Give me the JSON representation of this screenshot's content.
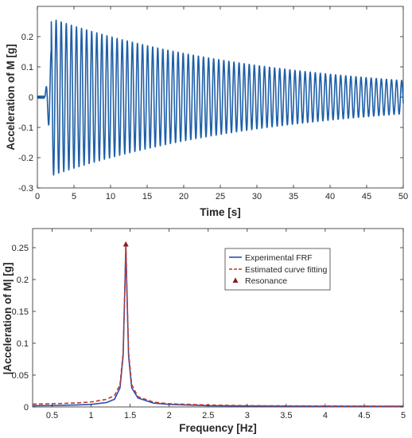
{
  "chart_data": [
    {
      "type": "line",
      "xlabel": "Time [s]",
      "ylabel": "Acceleration of M [g]",
      "xlim": [
        0,
        50
      ],
      "ylim": [
        -0.3,
        0.3
      ],
      "xticks": [
        0,
        5,
        10,
        15,
        20,
        25,
        30,
        35,
        40,
        45,
        50
      ],
      "yticks": [
        -0.3,
        -0.2,
        -0.1,
        0,
        0.1,
        0.2
      ],
      "ytick_labels": [
        "-0.3",
        "-0.2",
        "-0.1",
        "0",
        "0.1",
        "0.2"
      ],
      "grid": false,
      "series_color": "#1f5fa8",
      "signal": {
        "quiet_until_s": 1.0,
        "onset_s": 1.9,
        "peak_amplitude_g": 0.26,
        "final_amplitude_g": 0.055,
        "end_time_s": 50,
        "frequency_hz": 1.44
      }
    },
    {
      "type": "line",
      "xlabel": "Frequency [Hz]",
      "ylabel": "|Acceleration of M| [g]",
      "xlim": [
        0.25,
        5
      ],
      "ylim": [
        0,
        0.28
      ],
      "xticks": [
        0.5,
        1,
        1.5,
        2,
        2.5,
        3,
        3.5,
        4,
        4.5,
        5
      ],
      "xtick_labels": [
        "0.5",
        "1",
        "1.5",
        "2",
        "2.5",
        "3",
        "3.5",
        "4",
        "4.5",
        "5"
      ],
      "yticks": [
        0,
        0.05,
        0.1,
        0.15,
        0.2,
        0.25
      ],
      "ytick_labels": [
        "0",
        "0.05",
        "0.1",
        "0.15",
        "0.2",
        "0.25"
      ],
      "grid": false,
      "legend": {
        "placement": "top-right"
      },
      "series": [
        {
          "name": "Experimental FRF",
          "style": "solid",
          "color": "#2a4fb5",
          "points": [
            [
              0.25,
              0.002
            ],
            [
              0.5,
              0.0022
            ],
            [
              0.8,
              0.003
            ],
            [
              1.0,
              0.004
            ],
            [
              1.2,
              0.007
            ],
            [
              1.3,
              0.012
            ],
            [
              1.37,
              0.03
            ],
            [
              1.41,
              0.08
            ],
            [
              1.435,
              0.2
            ],
            [
              1.445,
              0.255
            ],
            [
              1.455,
              0.2
            ],
            [
              1.48,
              0.08
            ],
            [
              1.52,
              0.03
            ],
            [
              1.6,
              0.014
            ],
            [
              1.8,
              0.006
            ],
            [
              2.0,
              0.004
            ],
            [
              2.5,
              0.002
            ],
            [
              3.0,
              0.0015
            ],
            [
              3.5,
              0.0012
            ],
            [
              4.0,
              0.001
            ],
            [
              4.5,
              0.001
            ],
            [
              5.0,
              0.001
            ]
          ]
        },
        {
          "name": "Estimated curve fitting",
          "style": "dashed",
          "color": "#c0392b",
          "points": [
            [
              0.25,
              0.0045
            ],
            [
              0.5,
              0.005
            ],
            [
              0.8,
              0.0062
            ],
            [
              1.0,
              0.0078
            ],
            [
              1.2,
              0.012
            ],
            [
              1.3,
              0.018
            ],
            [
              1.37,
              0.035
            ],
            [
              1.41,
              0.085
            ],
            [
              1.435,
              0.2
            ],
            [
              1.445,
              0.255
            ],
            [
              1.455,
              0.2
            ],
            [
              1.48,
              0.085
            ],
            [
              1.52,
              0.035
            ],
            [
              1.6,
              0.016
            ],
            [
              1.8,
              0.0075
            ],
            [
              2.0,
              0.005
            ],
            [
              2.5,
              0.003
            ],
            [
              3.0,
              0.002
            ],
            [
              3.5,
              0.0017
            ],
            [
              4.0,
              0.0015
            ],
            [
              4.5,
              0.0013
            ],
            [
              5.0,
              0.0012
            ]
          ]
        },
        {
          "name": "Resonance",
          "style": "marker",
          "marker": "triangle",
          "color": "#8b1a1a",
          "points": [
            [
              1.445,
              0.255
            ]
          ]
        }
      ]
    }
  ]
}
